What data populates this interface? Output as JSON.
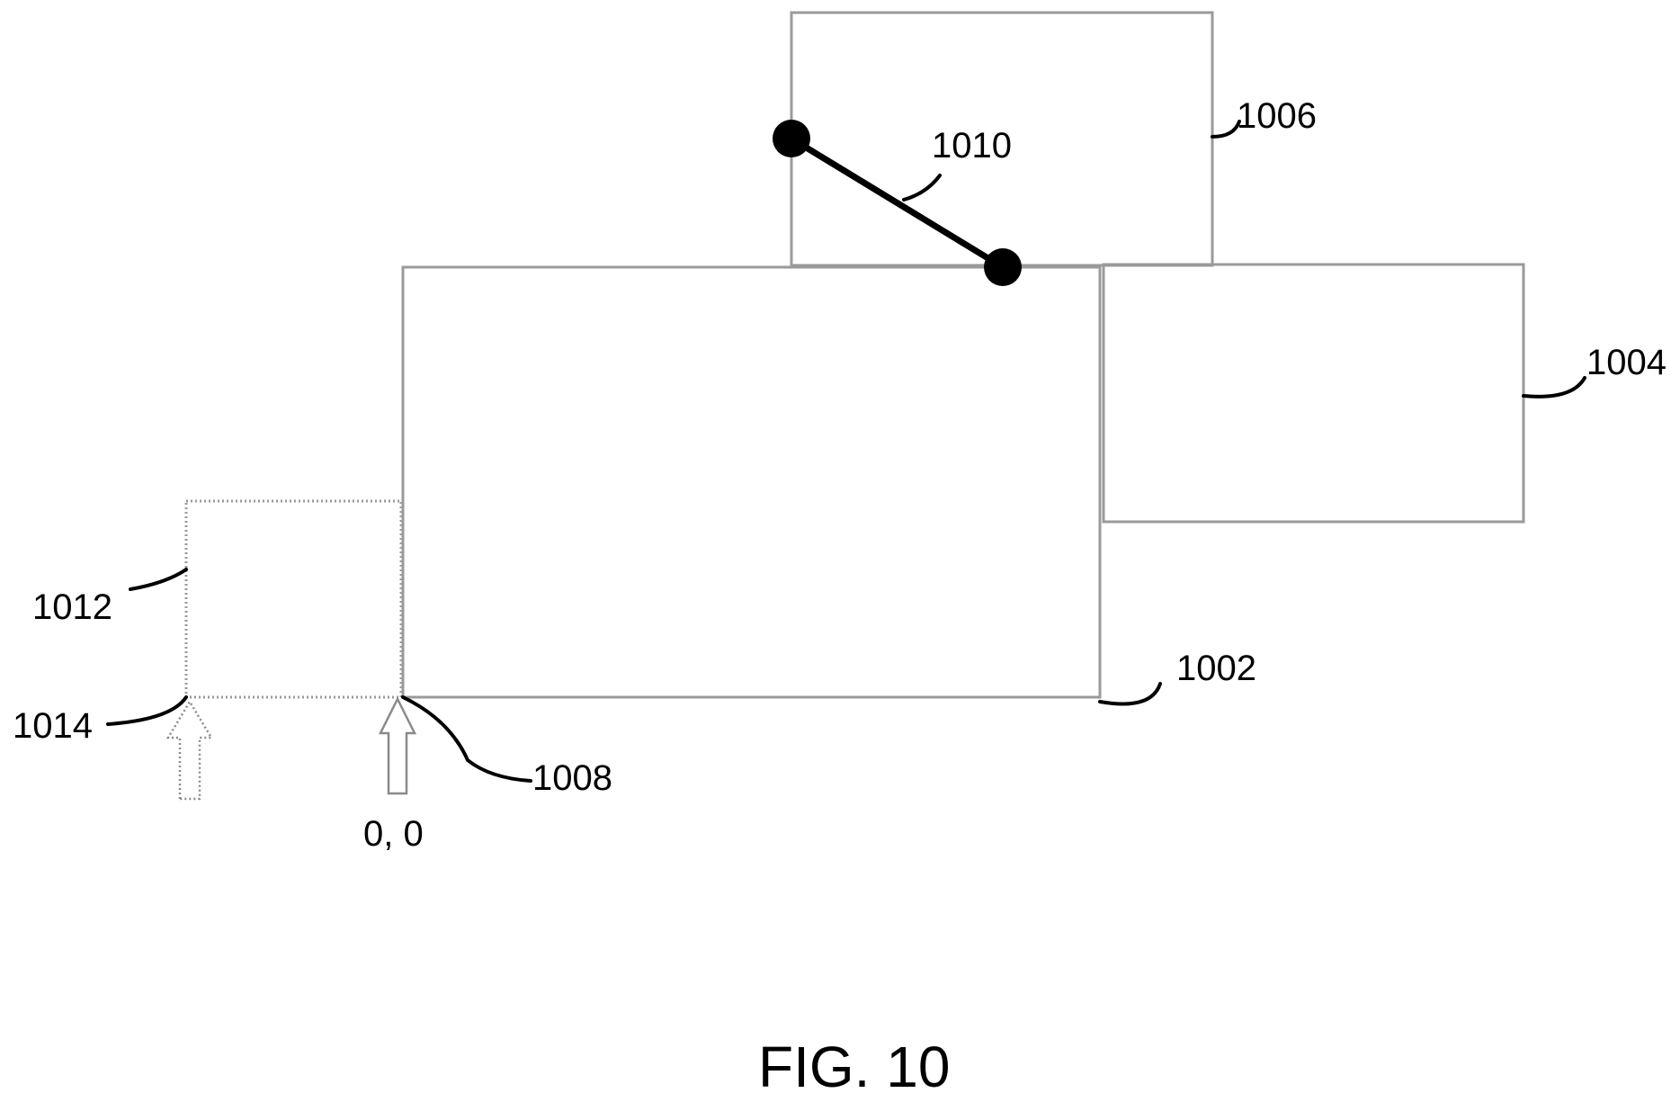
{
  "labels": {
    "main_region": "1002",
    "right_region": "1004",
    "top_region": "1006",
    "origin_point": "1008",
    "connector": "1010",
    "left_region": "1012",
    "left_point": "1014"
  },
  "origin_text": "0, 0",
  "caption": "FIG. 10"
}
